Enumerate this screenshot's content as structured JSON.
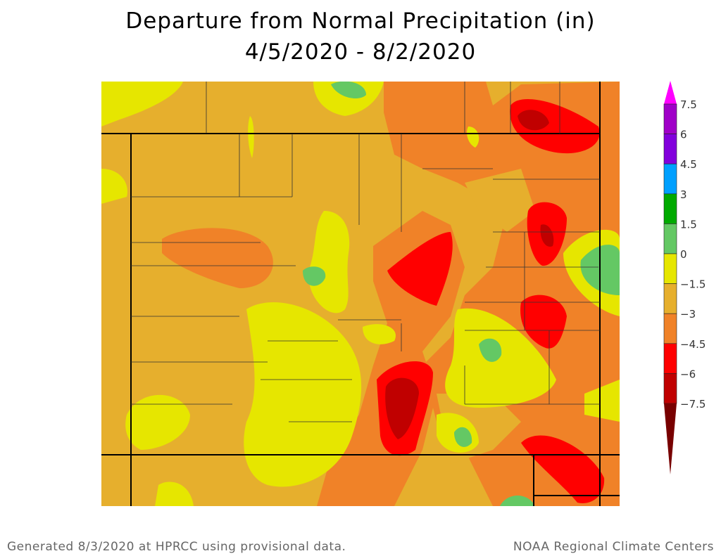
{
  "title": {
    "line1": "Departure from Normal Precipitation (in)",
    "line2": "4/5/2020 - 8/2/2020"
  },
  "legend": {
    "labels": [
      "7.5",
      "6",
      "4.5",
      "3",
      "1.5",
      "0",
      "−1.5",
      "−3",
      "−4.5",
      "−6",
      "−7.5"
    ],
    "colors": {
      "above_max": "#ff00ff",
      "6_to_7.5": "#a000c8",
      "4.5_to_6": "#8200dc",
      "3_to_4.5": "#00a0ff",
      "1.5_to_3": "#00aa00",
      "0_to_1.5": "#64c864",
      "-1.5_to_0": "#e6e600",
      "-3_to_-1.5": "#e6af2d",
      "-4.5_to_-3": "#f08228",
      "-6_to_-4.5": "#ff0000",
      "-7.5_to_-6": "#c00000",
      "below_min": "#780000"
    }
  },
  "footer": {
    "left": "Generated 8/3/2020 at HPRCC using provisional data.",
    "right": "NOAA Regional Climate Centers"
  }
}
